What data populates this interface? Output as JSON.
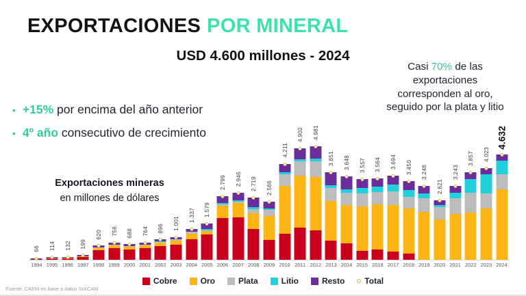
{
  "header": {
    "title_black": "EXPORTACIONES",
    "title_accent": "POR MINERAL",
    "subtitle": "USD 4.600 millones - 2024"
  },
  "right_note_lines": [
    [
      {
        "text": "Casi "
      },
      {
        "text": "70%",
        "accent": true
      },
      {
        "text": " de las"
      }
    ],
    [
      {
        "text": "exportaciones"
      }
    ],
    [
      {
        "text": "corresponden al oro,"
      }
    ],
    [
      {
        "text": "seguido por la plata y litio"
      }
    ]
  ],
  "bullets": [
    {
      "accent": "+15%",
      "rest": " por encima del año anterior"
    },
    {
      "accent": "4º año",
      "rest": " consecutivo de crecimiento"
    }
  ],
  "chart_note": {
    "line1": "Exportaciones mineras",
    "line2": "en millones de dólares"
  },
  "chart_data": {
    "type": "bar",
    "stacked": true,
    "title": "Exportaciones mineras en millones de dólares",
    "xlabel": "",
    "ylabel": "millones de USD",
    "ylim": [
      0,
      5000
    ],
    "grid": false,
    "legend_position": "bottom",
    "categories": [
      1994,
      1995,
      1996,
      1997,
      1998,
      1999,
      2000,
      2001,
      2002,
      2003,
      2004,
      2005,
      2006,
      2007,
      2008,
      2009,
      2010,
      2011,
      2012,
      2013,
      2014,
      2015,
      2016,
      2017,
      2018,
      2019,
      2020,
      2021,
      2022,
      2023,
      2024
    ],
    "series": [
      {
        "name": "Cobre",
        "color": "#C8001E",
        "values": [
          30,
          60,
          70,
          120,
          430,
          520,
          460,
          500,
          610,
          650,
          900,
          1120,
          1820,
          1856,
          1360,
          872,
          1137,
          1422,
          1295,
          847,
          730,
          391,
          463,
          369,
          276,
          0,
          0,
          0,
          0,
          0,
          0
        ]
      },
      {
        "name": "Oro",
        "color": "#FCB514",
        "values": [
          10,
          15,
          18,
          25,
          80,
          110,
          100,
          120,
          140,
          180,
          250,
          126,
          560,
          648,
          680,
          1052,
          2106,
          2255,
          2341,
          1733,
          1678,
          1956,
          1960,
          2032,
          1967,
          2110,
          1782,
          2011,
          2083,
          2253,
          3103
        ]
      },
      {
        "name": "Plata",
        "color": "#BDBDBD",
        "values": [
          5,
          5,
          6,
          8,
          30,
          30,
          30,
          40,
          40,
          60,
          70,
          32,
          56,
          59,
          190,
          257,
          505,
          637,
          697,
          578,
          547,
          569,
          535,
          591,
          518,
          584,
          524,
          681,
          849,
          644,
          648
        ]
      },
      {
        "name": "Litio",
        "color": "#22D0DB",
        "values": [
          0,
          0,
          0,
          0,
          0,
          6,
          8,
          14,
          16,
          21,
          17,
          63,
          70,
          59,
          68,
          77,
          84,
          98,
          100,
          116,
          146,
          249,
          249,
          296,
          310,
          227,
          105,
          259,
          617,
          845,
          602
        ]
      },
      {
        "name": "Resto",
        "color": "#6C2D9C",
        "values": [
          21,
          34,
          38,
          46,
          80,
          90,
          90,
          90,
          90,
          90,
          100,
          238,
          293,
          324,
          421,
          308,
          379,
          490,
          548,
          577,
          547,
          392,
          357,
          406,
          379,
          325,
          210,
          292,
          308,
          281,
          279
        ]
      }
    ],
    "totals": [
      66,
      114,
      132,
      199,
      620,
      756,
      688,
      764,
      896,
      1001,
      1337,
      1579,
      2799,
      2946,
      2719,
      2566,
      4211,
      4902,
      4981,
      3851,
      3648,
      3557,
      3564,
      3694,
      3450,
      3246,
      2621,
      3243,
      3857,
      4023,
      4632
    ],
    "total_labels": [
      "66",
      "114",
      "132",
      "199",
      "620",
      "756",
      "688",
      "764",
      "896",
      "1.001",
      "1.337",
      "1.579",
      "2.799",
      "2.946",
      "2.719",
      "2.566",
      "4.211",
      "4.902",
      "4.981",
      "3.851",
      "3.648",
      "3.557",
      "3.564",
      "3.694",
      "3.450",
      "3.246",
      "2.621",
      "3.243",
      "3.857",
      "4.023",
      "4.632"
    ],
    "highlight_year": 2024,
    "total_marker": {
      "fill": "#FFFDE0",
      "border": "#CBBE4E"
    }
  },
  "legend_items": [
    {
      "label": "Cobre",
      "type": "square",
      "color": "#C8001E"
    },
    {
      "label": "Oro",
      "type": "square",
      "color": "#FCB514"
    },
    {
      "label": "Plata",
      "type": "square",
      "color": "#BDBDBD"
    },
    {
      "label": "Litio",
      "type": "square",
      "color": "#22D0DB"
    },
    {
      "label": "Resto",
      "type": "square",
      "color": "#6C2D9C"
    },
    {
      "label": "Total",
      "type": "dot",
      "fill": "#FFFDE0",
      "border": "#CBBE4E"
    }
  ],
  "source": "Fuente: CAEM en base a datos SIACAM",
  "colors": {
    "title_accent": "#3BE3A7",
    "body_accent": "#2FCB99",
    "text_dark": "#20242E"
  }
}
